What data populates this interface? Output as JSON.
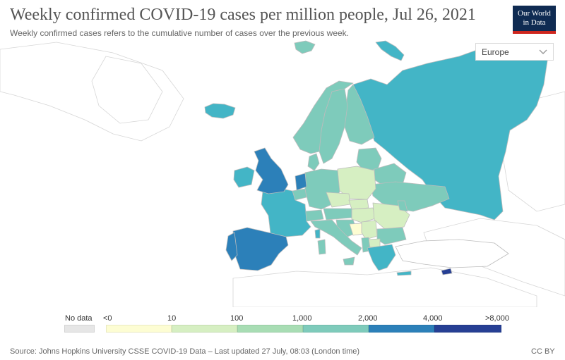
{
  "title": "Weekly confirmed COVID-19 cases per million people, Jul 26, 2021",
  "subtitle": "Weekly confirmed cases refers to the cumulative number of cases over the previous week.",
  "logo": {
    "line1": "Our World",
    "line2": "in Data",
    "bg_color": "#0f2b52",
    "accent_color": "#ce261e"
  },
  "region_selector": {
    "value": "Europe"
  },
  "colors": {
    "no_data": "#e6e6e6",
    "sea": "#ffffff",
    "unmapped_land": "#ffffff",
    "border": "#bcbcbc",
    "bin_lt0": "#fdfdd3",
    "bin_0_10": "#d6efc2",
    "bin_10_100": "#a8ddb4",
    "bin_100_1000": "#7ecbbb",
    "bin_1000_2000": "#43b5c6",
    "bin_2000_4000": "#2c80b9",
    "bin_4000_8000": "#263f94"
  },
  "legend": {
    "no_data_label": "No data",
    "bins": [
      "<0",
      "10",
      "100",
      "1,000",
      "2,000",
      "4,000",
      ">8,000"
    ]
  },
  "footer": {
    "source": "Source: Johns Hopkins University CSSE COVID-19 Data – Last updated 27 July, 08:03 (London time)",
    "license": "CC BY"
  }
}
